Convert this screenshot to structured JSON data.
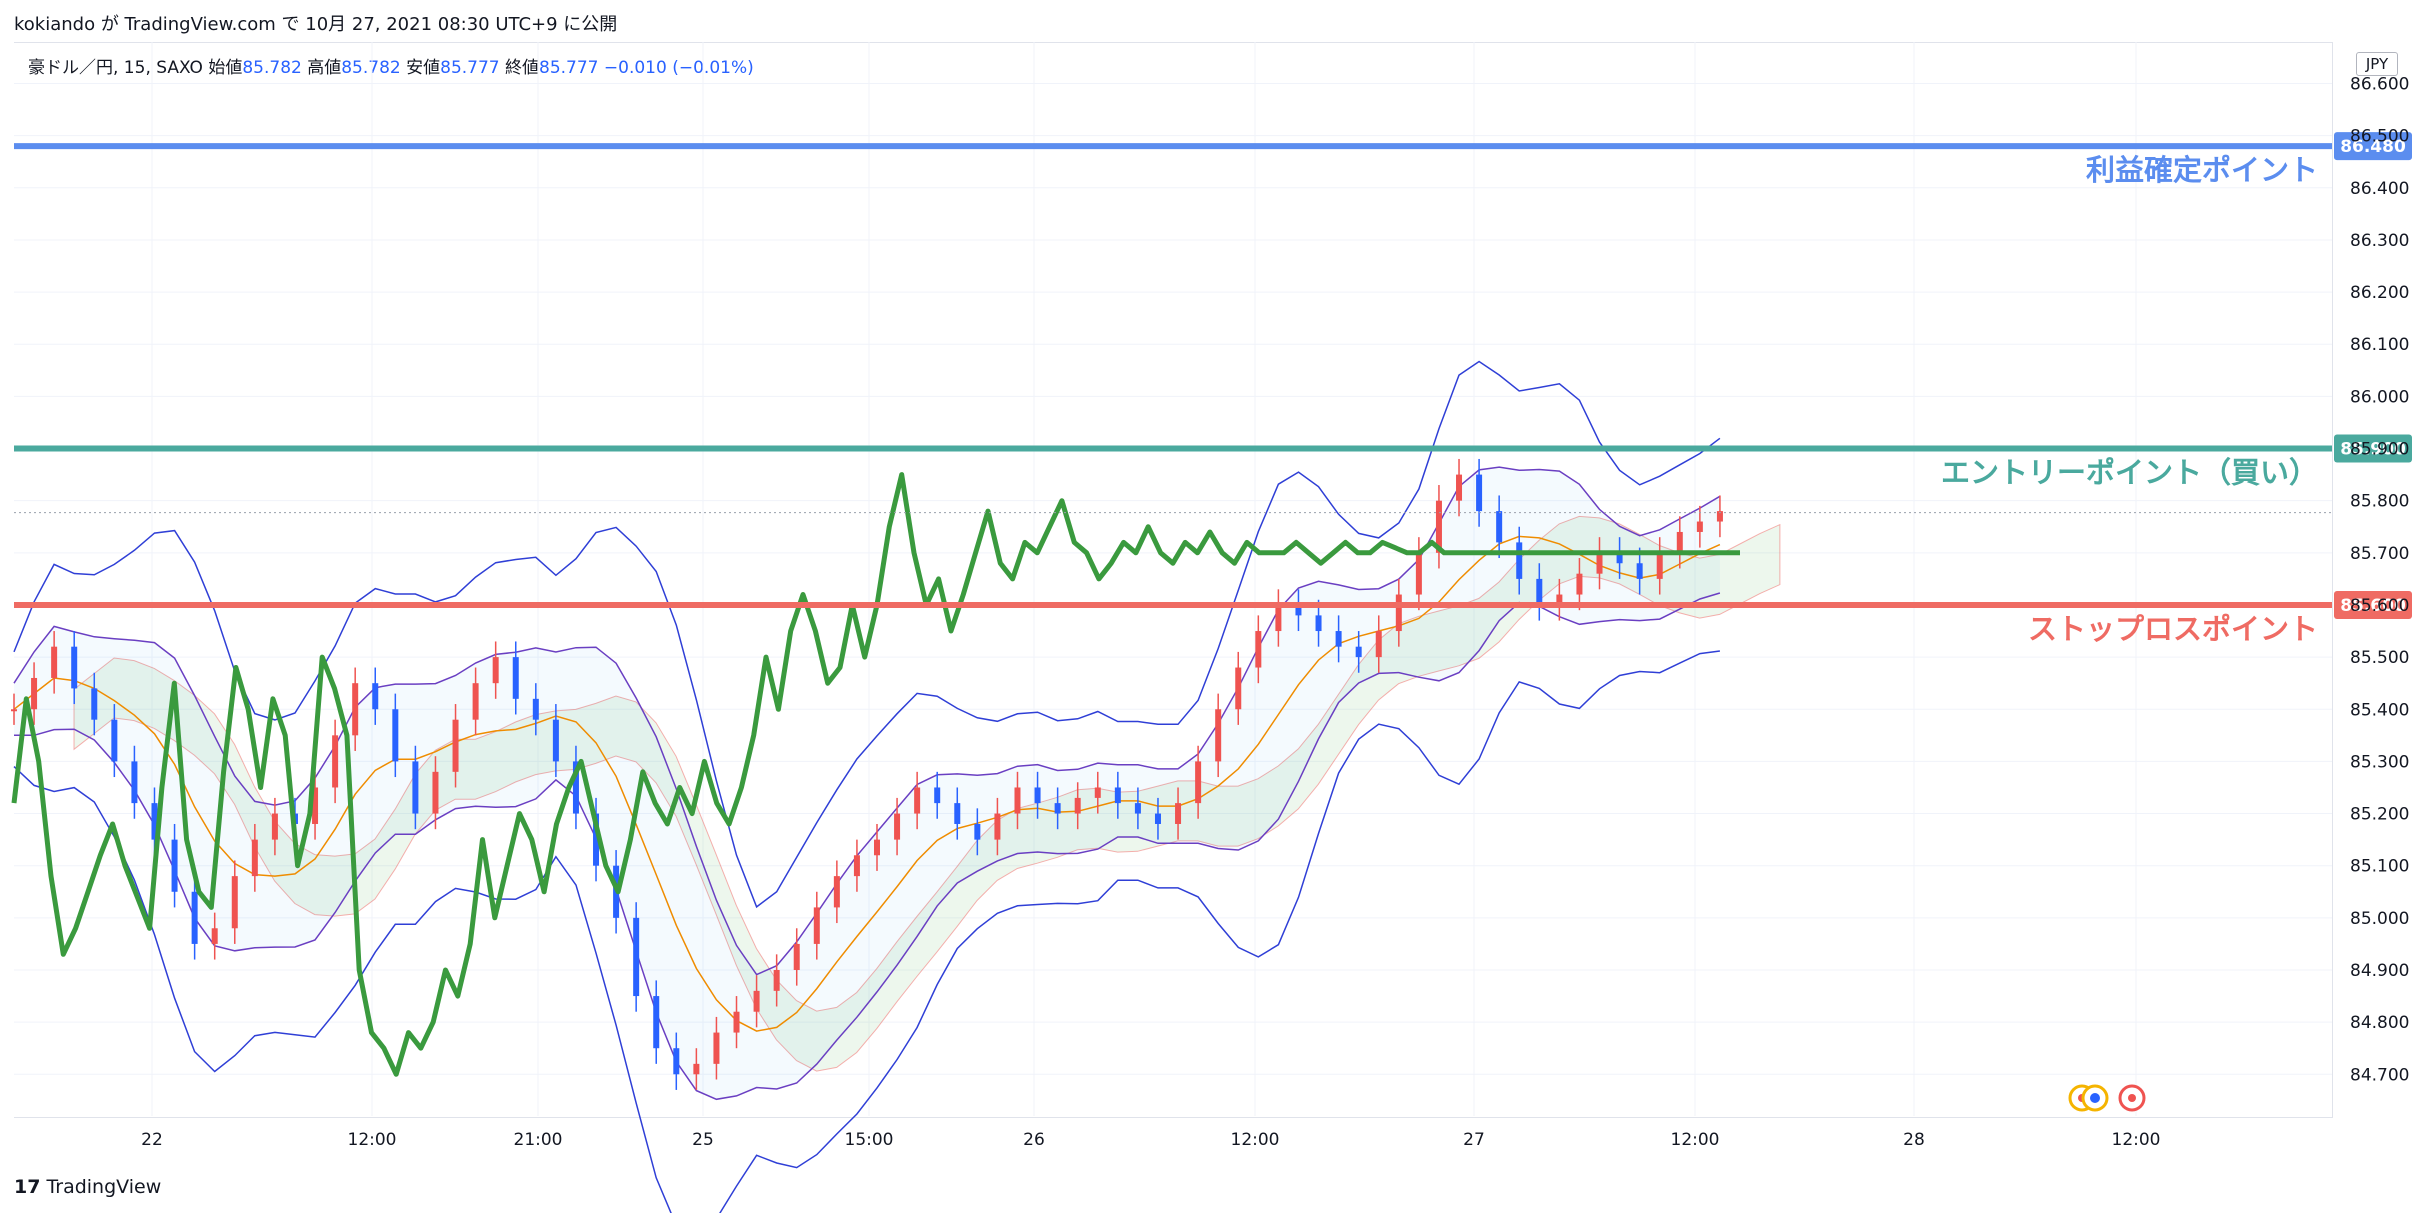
{
  "header": {
    "publish_line": "kokiando が TradingView.com で 10月 27, 2021 08:30 UTC+9 に公開"
  },
  "legend": {
    "symbol": "豪ドル／円, 15, SAXO",
    "open_label": "始値",
    "open": "85.782",
    "high_label": "高値",
    "high": "85.782",
    "low_label": "安値",
    "low": "85.777",
    "close_label": "終値",
    "close": "85.777",
    "change": "−0.010 (−0.01%)"
  },
  "currency_button": "JPY",
  "footer": {
    "brand": "TradingView",
    "logo": "17"
  },
  "colors": {
    "take_profit": "#5b8def",
    "entry": "#4aa99e",
    "stop_loss": "#ef6b63",
    "green_line": "#3a9a3e",
    "bull": "#ef5350",
    "bear": "#2962ff",
    "bb_outer": "#2f3fd6",
    "bb_inner": "#6a3fc2",
    "ma": "#ef8c00"
  },
  "chart_data": {
    "type": "line",
    "title": "",
    "ylim": [
      84.62,
      86.67
    ],
    "y_ticks": [
      "86.600",
      "86.500",
      "86.400",
      "86.300",
      "86.200",
      "86.100",
      "86.000",
      "85.900",
      "85.800",
      "85.700",
      "85.600",
      "85.500",
      "85.400",
      "85.300",
      "85.200",
      "85.100",
      "85.000",
      "84.900",
      "84.800",
      "84.700"
    ],
    "x_ticks": [
      "22",
      "12:00",
      "21:00",
      "25",
      "15:00",
      "26",
      "12:00",
      "27",
      "12:00",
      "28",
      "12:00"
    ],
    "horizontal_levels": [
      {
        "label": "利益確定ポイント",
        "value": 86.48,
        "price_label": "86.480",
        "color_key": "take_profit"
      },
      {
        "label": "エントリーポイント（買い）",
        "value": 85.9,
        "price_label": "85.900",
        "color_key": "entry"
      },
      {
        "label": "ストップロスポイント",
        "value": 85.6,
        "price_label": "85.600",
        "color_key": "stop_loss"
      }
    ],
    "last_price": 85.777,
    "series": [
      {
        "type": "line",
        "color_key": "green_line",
        "x": [
          0,
          0.5,
          1,
          1.5,
          2,
          2.5,
          3,
          3.5,
          4,
          4.5,
          5,
          5.5,
          6,
          6.5,
          7,
          7.5,
          8,
          8.5,
          9,
          9.5,
          10,
          10.5,
          11,
          11.5,
          12,
          12.5,
          13,
          13.5,
          14,
          14.5,
          15,
          15.5,
          16,
          16.5,
          17,
          17.5,
          18,
          18.5,
          19,
          19.5,
          20,
          20.5,
          21,
          21.5,
          22,
          22.5,
          23,
          23.5,
          24,
          24.5,
          25,
          25.5,
          26,
          26.5,
          27,
          27.5,
          28,
          28.5,
          29,
          29.5,
          30,
          30.5,
          31,
          31.5,
          32,
          32.5,
          33,
          33.5,
          34,
          34.5,
          35,
          35.5,
          36,
          36.5,
          37,
          37.5,
          38,
          38.5,
          39,
          39.5,
          40,
          40.5,
          41,
          41.5,
          42,
          42.5,
          43,
          43.5,
          44,
          44.5,
          45,
          45.5,
          46,
          46.5,
          47,
          47.5,
          48,
          48.5,
          49,
          49.5,
          50,
          50.5,
          51,
          51.5,
          52,
          52.5,
          53,
          53.5,
          54,
          54.5,
          55,
          55.5,
          56,
          56.5,
          57,
          57.5,
          58,
          58.5,
          59,
          59.5,
          60,
          60.5,
          61,
          61.5,
          62,
          62.5,
          63,
          63.5,
          64,
          64.5,
          65,
          65.5,
          66,
          66.5,
          67,
          67.5,
          68,
          68.5,
          69,
          69.5,
          70
        ],
        "values": [
          85.22,
          85.42,
          85.3,
          85.08,
          84.93,
          84.98,
          85.05,
          85.12,
          85.18,
          85.1,
          85.04,
          84.98,
          85.25,
          85.45,
          85.15,
          85.05,
          85.02,
          85.28,
          85.48,
          85.4,
          85.25,
          85.42,
          85.35,
          85.1,
          85.2,
          85.5,
          85.44,
          85.35,
          84.9,
          84.78,
          84.75,
          84.7,
          84.78,
          84.75,
          84.8,
          84.9,
          84.85,
          84.95,
          85.15,
          85.0,
          85.1,
          85.2,
          85.15,
          85.05,
          85.18,
          85.25,
          85.3,
          85.2,
          85.1,
          85.05,
          85.15,
          85.28,
          85.22,
          85.18,
          85.25,
          85.2,
          85.3,
          85.22,
          85.18,
          85.25,
          85.35,
          85.5,
          85.4,
          85.55,
          85.62,
          85.55,
          85.45,
          85.48,
          85.6,
          85.5,
          85.6,
          85.75,
          85.85,
          85.7,
          85.6,
          85.65,
          85.55,
          85.62,
          85.7,
          85.78,
          85.68,
          85.65,
          85.72,
          85.7,
          85.75,
          85.8,
          85.72,
          85.7,
          85.65,
          85.68,
          85.72,
          85.7,
          85.75,
          85.7,
          85.68,
          85.72,
          85.7,
          85.74,
          85.7,
          85.68,
          85.72,
          85.7,
          85.7,
          85.7,
          85.72,
          85.7,
          85.68,
          85.7,
          85.72,
          85.7,
          85.7,
          85.72,
          85.71,
          85.7,
          85.7,
          85.72,
          85.7,
          85.7,
          85.7,
          85.7,
          85.7,
          85.7,
          85.7,
          85.7,
          85.7,
          85.7,
          85.7,
          85.7,
          85.7,
          85.7,
          85.7,
          85.7,
          85.7,
          85.7,
          85.7,
          85.7,
          85.7,
          85.7,
          85.7,
          85.7,
          85.7
        ]
      },
      {
        "type": "candles",
        "x_start": 0,
        "x_step": 0.5,
        "close": [
          85.4,
          85.46,
          85.52,
          85.44,
          85.38,
          85.3,
          85.22,
          85.15,
          85.05,
          84.95,
          84.98,
          85.08,
          85.15,
          85.2,
          85.18,
          85.25,
          85.35,
          85.45,
          85.4,
          85.3,
          85.2,
          85.28,
          85.38,
          85.45,
          85.5,
          85.42,
          85.38,
          85.3,
          85.2,
          85.1,
          85.0,
          84.85,
          84.75,
          84.7,
          84.72,
          84.78,
          84.82,
          84.86,
          84.9,
          84.95,
          85.02,
          85.08,
          85.12,
          85.15,
          85.2,
          85.25,
          85.22,
          85.18,
          85.15,
          85.2,
          85.25,
          85.22,
          85.2,
          85.23,
          85.25,
          85.22,
          85.2,
          85.18,
          85.22,
          85.3,
          85.4,
          85.48,
          85.55,
          85.6,
          85.58,
          85.55,
          85.52,
          85.5,
          85.55,
          85.62,
          85.7,
          85.8,
          85.85,
          85.78,
          85.72,
          85.65,
          85.6,
          85.62,
          85.66,
          85.7,
          85.68,
          85.65,
          85.7,
          85.74,
          85.76,
          85.78
        ],
        "up_color_key": "bull",
        "down_color_key": "bear"
      }
    ]
  }
}
